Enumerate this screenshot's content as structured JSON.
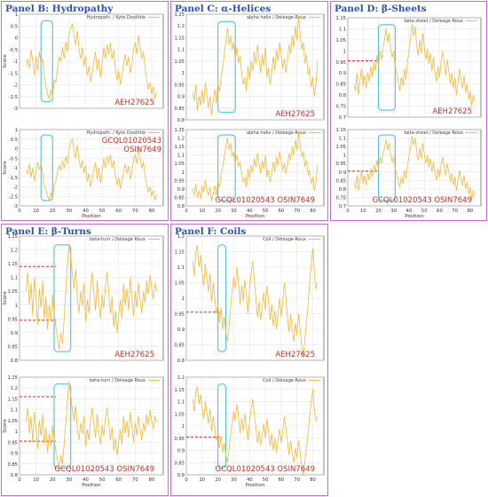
{
  "colors": {
    "line": "#f2b935",
    "grid": "#e1e1e1",
    "highlight": "#4fc3e0",
    "threshold": "#d62a20",
    "annot": "#c0332b",
    "panel_border": "#c66bd0",
    "title": "#2a54b0"
  },
  "panels": [
    {
      "title": "Panel B: Hydropathy"
    },
    {
      "title": "Panel C: α-Helices"
    },
    {
      "title": "Panel D: β-Sheets"
    },
    {
      "title": "Panel E: β-Turns"
    },
    {
      "title": "Panel F: Coils"
    }
  ],
  "chart_data": [
    {
      "type": "line",
      "panel": 0,
      "legend": "Hydropath. / Kyte  Doolittle",
      "annotation": [
        "AEH27625"
      ],
      "xlabel": "",
      "ylabel": "Score",
      "xlim": [
        0,
        87
      ],
      "ylim": [
        -3,
        1
      ],
      "xticks": [
        0,
        10,
        20,
        30,
        40,
        50,
        60,
        70,
        80
      ],
      "yticks": [
        -3,
        -2.5,
        -2,
        -1.5,
        -1,
        -0.5,
        0,
        0.5,
        1
      ],
      "show_xticks": false,
      "highlight_x": [
        13,
        20
      ],
      "threshold": null,
      "values": [
        -1.2,
        -0.9,
        -1.3,
        -0.5,
        -1.0,
        -1.6,
        -0.8,
        -1.4,
        -0.6,
        -1.1,
        -0.9,
        -1.6,
        -2.1,
        -2.4,
        -2.6,
        -2.2,
        -2.5,
        -1.8,
        -1.9,
        -1.3,
        -0.8,
        -1.0,
        -0.4,
        -0.9,
        -0.2,
        -0.6,
        0.2,
        0.4,
        0.6,
        0.1,
        -0.3,
        0.3,
        -0.5,
        -0.9,
        -0.4,
        -1.2,
        -0.8,
        -1.6,
        -1.2,
        -1.9,
        -1.5,
        -1.0,
        -0.6,
        -1.4,
        -0.9,
        -1.7,
        -1.2,
        -0.4,
        -0.9,
        -0.3,
        -0.7,
        -0.2,
        -0.9,
        -0.5,
        -1.3,
        -1.8,
        -1.4,
        -2.0,
        -1.6,
        -1.1,
        -0.7,
        -1.2,
        -0.8,
        -1.5,
        -1.1,
        -0.5,
        -0.2,
        -0.7,
        0.1,
        -0.4,
        -0.9,
        -0.6,
        -1.3,
        -1.8,
        -2.2,
        -1.9,
        -2.4,
        -2.1,
        -2.6,
        -2.3
      ]
    },
    {
      "type": "line",
      "panel": 0,
      "legend": "Hydropath. / Kyte  Doolittle",
      "annotation": [
        "GCQL01020543",
        "OSIN7649"
      ],
      "xlabel": "Position",
      "ylabel": "Score",
      "xlim": [
        0,
        87
      ],
      "ylim": [
        -3,
        1
      ],
      "xticks": [
        0,
        10,
        20,
        30,
        40,
        50,
        60,
        70,
        80
      ],
      "yticks": [
        -3,
        -2.5,
        -2,
        -1.5,
        -1,
        -0.5,
        0,
        0.5,
        1
      ],
      "show_xticks": true,
      "highlight_x": [
        13,
        20
      ],
      "threshold": null,
      "values": [
        -1.1,
        -1.3,
        -0.8,
        -1.5,
        -1.0,
        -1.7,
        -1.2,
        -0.7,
        -1.1,
        -0.8,
        -1.3,
        -1.9,
        -2.2,
        -2.5,
        -2.7,
        -2.3,
        -2.6,
        -1.9,
        -1.7,
        -1.2,
        -0.9,
        -1.1,
        -0.6,
        -1.0,
        -0.4,
        -0.8,
        0.0,
        0.3,
        0.5,
        -0.1,
        -0.5,
        0.2,
        -0.6,
        -1.0,
        -0.6,
        -1.3,
        -0.9,
        -1.7,
        -1.3,
        -2.0,
        -1.6,
        -1.1,
        -0.7,
        -1.6,
        -1.0,
        -1.8,
        -1.3,
        -0.5,
        -1.0,
        -0.4,
        -0.8,
        -0.3,
        -1.0,
        -0.6,
        -1.4,
        -1.9,
        -1.5,
        -2.1,
        -1.7,
        -1.2,
        -0.8,
        -1.3,
        -0.9,
        -1.6,
        -1.2,
        -0.6,
        -0.3,
        -0.8,
        0.0,
        -0.5,
        -1.0,
        -0.7,
        -1.4,
        -1.9,
        -2.3,
        -2.0,
        -2.5,
        -2.2,
        -2.7,
        -2.4
      ]
    },
    {
      "type": "line",
      "panel": 1,
      "legend": "alpha helix / Deleage  Roux",
      "annotation": [
        "AEH27625"
      ],
      "xlabel": "",
      "ylabel": "",
      "xlim": [
        0,
        87
      ],
      "ylim": [
        0.8,
        1.25
      ],
      "xticks": [
        0,
        10,
        20,
        30,
        40,
        50,
        60,
        70,
        80
      ],
      "yticks": [
        0.8,
        0.85,
        0.9,
        0.95,
        1,
        1.05,
        1.1,
        1.15,
        1.2,
        1.25
      ],
      "show_xticks": false,
      "highlight_x": [
        20,
        31
      ],
      "threshold": null,
      "values": [
        0.92,
        0.88,
        0.95,
        0.84,
        0.9,
        0.86,
        0.93,
        0.87,
        0.96,
        0.91,
        0.85,
        0.9,
        0.82,
        0.88,
        0.93,
        0.87,
        0.96,
        0.92,
        0.98,
        1.02,
        1.08,
        1.14,
        1.19,
        1.12,
        1.16,
        1.1,
        1.13,
        1.06,
        1.11,
        1.04,
        1.07,
        1.0,
        0.95,
        0.98,
        0.92,
        1.03,
        0.97,
        1.05,
        1.01,
        1.09,
        1.04,
        1.12,
        1.06,
        1.0,
        1.08,
        1.03,
        1.11,
        0.98,
        1.02,
        0.95,
        1.0,
        1.07,
        1.01,
        1.1,
        1.05,
        1.13,
        1.08,
        1.02,
        1.06,
        1.0,
        1.05,
        1.12,
        1.08,
        1.16,
        1.11,
        1.2,
        1.14,
        1.24,
        1.17,
        1.1,
        1.13,
        1.04,
        1.08,
        0.99,
        1.02,
        0.94,
        0.98,
        0.9,
        0.95,
        1.05
      ]
    },
    {
      "type": "line",
      "panel": 1,
      "legend": "alpha helix / Deleage  Roux",
      "annotation": [
        "GCQL01020543  OSIN7649"
      ],
      "xlabel": "Position",
      "ylabel": "",
      "xlim": [
        0,
        87
      ],
      "ylim": [
        0.8,
        1.25
      ],
      "xticks": [
        0,
        10,
        20,
        30,
        40,
        50,
        60,
        70,
        80
      ],
      "yticks": [
        0.8,
        0.85,
        0.9,
        0.95,
        1,
        1.05,
        1.1,
        1.15,
        1.2,
        1.25
      ],
      "show_xticks": true,
      "highlight_x": [
        20,
        31
      ],
      "threshold": null,
      "values": [
        0.9,
        0.86,
        0.93,
        0.85,
        0.89,
        0.84,
        0.92,
        0.88,
        0.95,
        0.9,
        0.86,
        0.91,
        0.83,
        0.87,
        0.92,
        0.86,
        0.95,
        0.91,
        0.99,
        1.03,
        1.09,
        1.15,
        1.2,
        1.13,
        1.17,
        1.09,
        1.12,
        1.05,
        1.1,
        1.03,
        1.06,
        0.99,
        0.94,
        0.97,
        0.91,
        1.02,
        0.96,
        1.04,
        1.0,
        1.08,
        1.03,
        1.11,
        1.05,
        0.99,
        1.07,
        1.02,
        1.1,
        0.97,
        1.01,
        0.94,
        0.99,
        1.06,
        1.0,
        1.09,
        1.04,
        1.12,
        1.07,
        1.01,
        1.05,
        0.99,
        1.04,
        1.11,
        1.07,
        1.15,
        1.1,
        1.19,
        1.13,
        1.23,
        1.16,
        1.09,
        1.12,
        1.03,
        1.07,
        0.98,
        1.01,
        0.93,
        0.97,
        0.89,
        0.94,
        1.04
      ]
    },
    {
      "type": "line",
      "panel": 2,
      "legend": "beta-sheet / Deleage  Roux",
      "annotation": [
        "AEH27625"
      ],
      "xlabel": "",
      "ylabel": "",
      "xlim": [
        0,
        87
      ],
      "ylim": [
        0.7,
        1.15
      ],
      "xticks": [
        0,
        10,
        20,
        30,
        40,
        50,
        60,
        70,
        80
      ],
      "yticks": [
        0.7,
        0.75,
        0.8,
        0.85,
        0.9,
        0.95,
        1,
        1.05,
        1.1,
        1.15
      ],
      "show_xticks": false,
      "highlight_x": [
        20,
        31
      ],
      "threshold": {
        "y": 0.955,
        "x": [
          0,
          20
        ]
      },
      "values": [
        0.85,
        0.82,
        0.9,
        0.8,
        0.87,
        0.92,
        0.84,
        0.89,
        0.83,
        0.9,
        0.86,
        0.93,
        0.88,
        0.95,
        0.91,
        0.98,
        0.93,
        1.0,
        0.96,
        1.02,
        1.05,
        1.1,
        1.04,
        1.08,
        1.01,
        0.97,
        1.0,
        0.93,
        0.9,
        0.86,
        0.82,
        0.88,
        0.84,
        0.92,
        0.87,
        0.95,
        1.0,
        1.06,
        1.12,
        1.07,
        1.11,
        1.03,
        0.98,
        1.05,
        0.99,
        1.08,
        1.02,
        0.96,
        1.01,
        0.94,
        0.99,
        0.91,
        0.97,
        0.9,
        0.86,
        0.93,
        0.88,
        0.95,
        1.0,
        0.94,
        0.89,
        0.96,
        0.91,
        0.85,
        0.9,
        0.83,
        0.88,
        0.8,
        0.86,
        0.92,
        0.87,
        0.83,
        0.89,
        0.81,
        0.85,
        0.78,
        0.82,
        0.75,
        0.8,
        0.77
      ]
    },
    {
      "type": "line",
      "panel": 2,
      "legend": "beta-sheet / Deleage  Roux",
      "annotation": [
        "GCQL01020543  OSIN7649"
      ],
      "xlabel": "Position",
      "ylabel": "",
      "xlim": [
        0,
        87
      ],
      "ylim": [
        0.7,
        1.15
      ],
      "xticks": [
        0,
        10,
        20,
        30,
        40,
        50,
        60,
        70,
        80
      ],
      "yticks": [
        0.7,
        0.75,
        0.8,
        0.85,
        0.9,
        0.95,
        1,
        1.05,
        1.1,
        1.15
      ],
      "show_xticks": true,
      "highlight_x": [
        20,
        31
      ],
      "threshold": {
        "y": 0.905,
        "x": [
          0,
          20
        ]
      },
      "values": [
        0.84,
        0.8,
        0.88,
        0.79,
        0.86,
        0.9,
        0.83,
        0.88,
        0.82,
        0.89,
        0.85,
        0.92,
        0.87,
        0.94,
        0.9,
        0.97,
        0.92,
        0.99,
        0.95,
        1.01,
        1.04,
        1.09,
        1.03,
        1.07,
        1.0,
        0.96,
        0.99,
        0.92,
        0.89,
        0.85,
        0.81,
        0.87,
        0.83,
        0.91,
        0.86,
        0.94,
        0.99,
        1.05,
        1.11,
        1.06,
        1.1,
        1.02,
        0.97,
        1.04,
        0.98,
        1.07,
        1.01,
        0.95,
        1.0,
        0.93,
        0.98,
        0.9,
        0.96,
        0.89,
        0.85,
        0.92,
        0.87,
        0.94,
        0.99,
        0.93,
        0.88,
        0.95,
        0.9,
        0.84,
        0.89,
        0.82,
        0.87,
        0.79,
        0.85,
        0.91,
        0.86,
        0.82,
        0.88,
        0.8,
        0.84,
        0.77,
        0.81,
        0.74,
        0.79,
        0.76
      ]
    },
    {
      "type": "line",
      "panel": 3,
      "legend": "beta-turn / Deleage  Roux",
      "annotation": [
        "AEH27625"
      ],
      "xlabel": "",
      "ylabel": "Score",
      "xlim": [
        0,
        87
      ],
      "ylim": [
        0.8,
        1.25
      ],
      "xticks": [
        0,
        10,
        20,
        30,
        40,
        50,
        60,
        70,
        80
      ],
      "yticks": [
        0.8,
        0.85,
        0.9,
        0.95,
        1,
        1.05,
        1.1,
        1.15,
        1.2,
        1.25
      ],
      "show_xticks": false,
      "highlight_x": [
        21,
        31
      ],
      "threshold": [
        {
          "y": 1.14,
          "x": [
            0,
            22
          ]
        },
        {
          "y": 0.945,
          "x": [
            0,
            22
          ]
        }
      ],
      "values": [
        1.05,
        1.12,
        1.0,
        1.08,
        0.96,
        1.1,
        1.02,
        0.93,
        1.06,
        0.99,
        1.09,
        0.95,
        1.03,
        0.91,
        1.0,
        0.94,
        1.04,
        0.97,
        0.92,
        0.88,
        0.84,
        0.9,
        0.86,
        0.95,
        1.05,
        1.15,
        1.22,
        1.18,
        1.11,
        1.06,
        1.13,
        1.02,
        0.97,
        1.05,
        1.0,
        1.08,
        0.94,
        1.02,
        0.97,
        1.06,
        1.12,
        1.04,
        0.98,
        1.09,
        1.01,
        0.95,
        1.04,
        0.99,
        1.07,
        1.12,
        1.05,
        0.97,
        1.03,
        0.92,
        0.98,
        0.9,
        0.96,
        1.02,
        0.95,
        1.08,
        1.0,
        1.06,
        0.98,
        1.1,
        1.03,
        0.96,
        1.05,
        0.99,
        1.08,
        1.02,
        0.97,
        1.05,
        1.01,
        1.09,
        1.04,
        1.11,
        1.06,
        1.02,
        1.08,
        1.05
      ]
    },
    {
      "type": "line",
      "panel": 3,
      "legend": "beta-turn / Deleage  Roux",
      "annotation": [
        "GCQL01020543  OSIN7649"
      ],
      "xlabel": "Position",
      "ylabel": "Score",
      "xlim": [
        0,
        87
      ],
      "ylim": [
        0.8,
        1.25
      ],
      "xticks": [
        0,
        10,
        20,
        30,
        40,
        50,
        60,
        70,
        80
      ],
      "yticks": [
        0.8,
        0.85,
        0.9,
        0.95,
        1,
        1.05,
        1.1,
        1.15,
        1.2,
        1.25
      ],
      "show_xticks": true,
      "highlight_x": [
        21,
        31
      ],
      "threshold": [
        {
          "y": 1.16,
          "x": [
            0,
            22
          ]
        },
        {
          "y": 0.955,
          "x": [
            0,
            22
          ]
        }
      ],
      "values": [
        1.04,
        1.11,
        0.99,
        1.07,
        0.95,
        1.09,
        1.01,
        0.92,
        1.05,
        0.98,
        1.08,
        0.94,
        1.02,
        0.9,
        0.99,
        0.93,
        1.03,
        0.96,
        0.91,
        0.87,
        0.83,
        0.89,
        0.85,
        0.94,
        1.04,
        1.14,
        1.23,
        1.17,
        1.1,
        1.05,
        1.12,
        1.01,
        0.96,
        1.04,
        0.99,
        1.07,
        0.93,
        1.01,
        0.96,
        1.05,
        1.11,
        1.03,
        0.97,
        1.08,
        1.0,
        0.94,
        1.03,
        0.98,
        1.06,
        1.11,
        1.04,
        0.96,
        1.02,
        0.91,
        0.97,
        0.89,
        0.95,
        1.01,
        0.94,
        1.07,
        0.99,
        1.05,
        0.97,
        1.09,
        1.02,
        0.95,
        1.04,
        0.98,
        1.07,
        1.01,
        0.96,
        1.04,
        1.0,
        1.08,
        1.03,
        1.1,
        1.05,
        1.01,
        1.07,
        1.04
      ]
    },
    {
      "type": "line",
      "panel": 4,
      "legend": "Coil / Deleage  Roux",
      "annotation": [
        "AEH27625"
      ],
      "xlabel": "",
      "ylabel": "",
      "xlim": [
        0,
        87
      ],
      "ylim": [
        0.8,
        1.2
      ],
      "xticks": [
        0,
        10,
        20,
        30,
        40,
        50,
        60,
        70,
        80
      ],
      "yticks": [
        0.8,
        0.85,
        0.9,
        0.95,
        1,
        1.05,
        1.1,
        1.15,
        1.2
      ],
      "show_xticks": false,
      "highlight_x": [
        20,
        25
      ],
      "threshold": {
        "y": 0.955,
        "x": [
          0,
          21
        ]
      },
      "values": [
        1.12,
        1.07,
        1.15,
        1.17,
        1.1,
        1.14,
        1.08,
        1.04,
        1.11,
        1.06,
        1.02,
        1.08,
        0.99,
        1.05,
        1.0,
        0.95,
        0.98,
        0.92,
        0.97,
        0.9,
        0.94,
        0.89,
        0.86,
        0.91,
        0.97,
        1.02,
        1.07,
        1.03,
        1.1,
        1.05,
        0.98,
        1.04,
        0.99,
        1.06,
        1.01,
        0.95,
        1.03,
        1.08,
        1.12,
        1.06,
        1.0,
        0.94,
        0.99,
        0.93,
        0.97,
        1.02,
        0.96,
        1.04,
        0.99,
        0.93,
        0.98,
        0.91,
        0.96,
        0.9,
        0.95,
        1.0,
        0.94,
        0.99,
        1.05,
        1.0,
        0.94,
        0.89,
        0.95,
        0.9,
        0.86,
        0.92,
        0.88,
        0.95,
        0.9,
        0.84,
        0.81,
        0.87,
        0.92,
        0.98,
        1.05,
        1.11,
        1.16,
        1.08,
        1.03,
        1.05
      ]
    },
    {
      "type": "line",
      "panel": 4,
      "legend": "Coil / Deleage  Roux",
      "annotation": [
        "GCQL01020543  OSIN7649"
      ],
      "xlabel": "Position",
      "ylabel": "",
      "xlim": [
        0,
        87
      ],
      "ylim": [
        0.8,
        1.2
      ],
      "xticks": [
        0,
        10,
        20,
        30,
        40,
        50,
        60,
        70,
        80
      ],
      "yticks": [
        0.8,
        0.85,
        0.9,
        0.95,
        1,
        1.05,
        1.1,
        1.15,
        1.2
      ],
      "show_xticks": true,
      "highlight_x": [
        20,
        25
      ],
      "threshold": {
        "y": 0.955,
        "x": [
          0,
          21
        ]
      },
      "values": [
        1.11,
        1.06,
        1.14,
        1.16,
        1.09,
        1.13,
        1.07,
        1.03,
        1.1,
        1.05,
        1.01,
        1.07,
        0.98,
        1.04,
        0.99,
        0.94,
        0.97,
        0.91,
        0.96,
        0.89,
        0.93,
        0.88,
        0.85,
        0.9,
        0.96,
        1.01,
        1.06,
        1.02,
        1.09,
        1.04,
        0.97,
        1.03,
        0.98,
        1.05,
        1.0,
        0.94,
        1.02,
        1.07,
        1.11,
        1.05,
        0.99,
        0.93,
        0.98,
        0.92,
        0.96,
        1.01,
        0.95,
        1.03,
        0.98,
        0.92,
        0.97,
        0.9,
        0.95,
        0.89,
        0.94,
        0.99,
        0.93,
        0.98,
        1.04,
        0.99,
        0.93,
        0.88,
        0.94,
        0.89,
        0.85,
        0.91,
        0.87,
        0.94,
        0.89,
        0.83,
        0.8,
        0.86,
        0.91,
        0.97,
        1.04,
        1.1,
        1.15,
        1.07,
        1.02,
        1.04
      ]
    }
  ]
}
